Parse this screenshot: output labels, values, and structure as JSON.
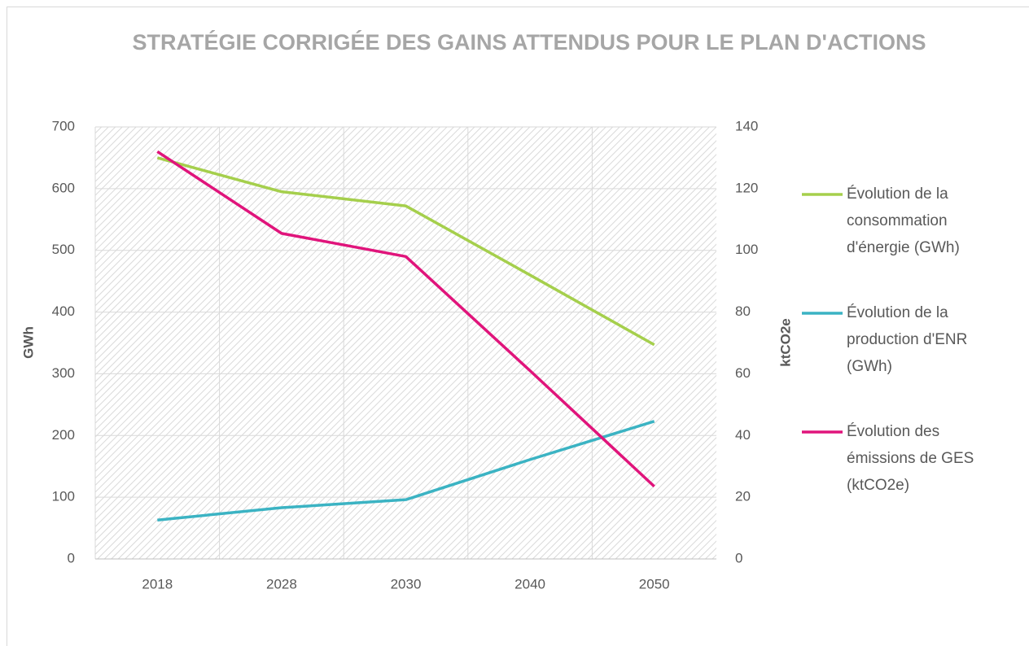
{
  "chart_data": {
    "type": "line",
    "title": "STRATÉGIE CORRIGÉE DES GAINS ATTENDUS POUR LE PLAN D'ACTIONS",
    "ylabel": "GWh",
    "y2label": "ktCO2e",
    "categories": [
      "2018",
      "2028",
      "2030",
      "2040",
      "2050"
    ],
    "series": [
      {
        "name": "Évolution de la consommation d'énergie (GWh)",
        "color": "#a5cf4c",
        "values": [
          650,
          595,
          572,
          460,
          347
        ]
      },
      {
        "name": "Évolution de la production d'ENR (GWh)",
        "color": "#3bb3c3",
        "values": [
          63,
          83,
          96,
          161,
          223
        ]
      },
      {
        "name": "Évolution des émissions de GES (ktCO2e)",
        "color": "#e0147b",
        "axis": "y2",
        "values": [
          132,
          105.5,
          98,
          61,
          23.5
        ]
      }
    ],
    "ylim": [
      0,
      700
    ],
    "yticks": [
      0,
      100,
      200,
      300,
      400,
      500,
      600,
      700
    ],
    "y2lim": [
      0,
      140
    ],
    "y2ticks": [
      0,
      20,
      40,
      60,
      80,
      100,
      120,
      140
    ],
    "grid": true,
    "legend": "right"
  }
}
